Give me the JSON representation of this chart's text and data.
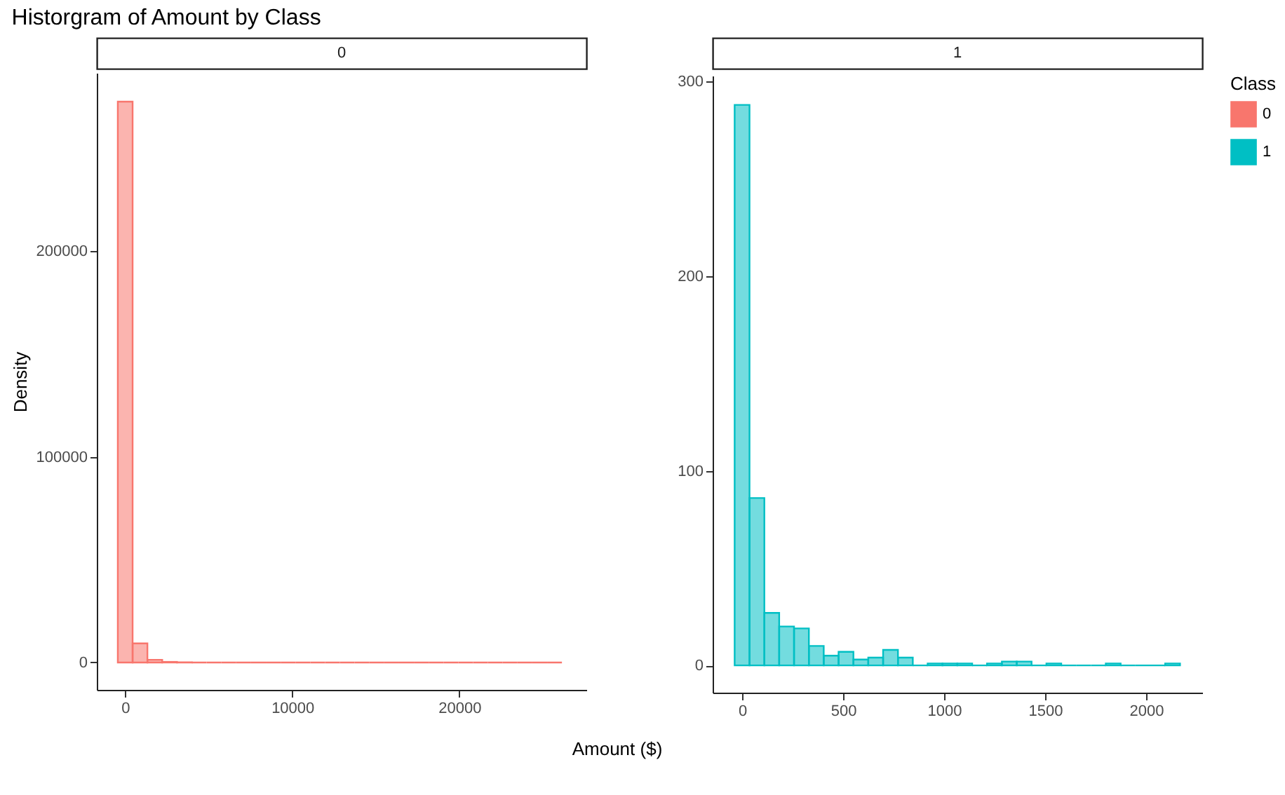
{
  "chart_data": [
    {
      "type": "histogram",
      "title": "Historgram of Amount by Class",
      "subtitle": "0",
      "ylabel": "Density",
      "xlabel": "Amount ($)",
      "bins": [
        -443,
        443,
        1329,
        2215,
        3101,
        3987,
        4873,
        5759,
        6645,
        7531,
        8417,
        9303,
        10189,
        11075,
        11961,
        12847,
        13733,
        14619,
        15505,
        16391,
        17277,
        18163,
        19049,
        19935,
        20821,
        21707,
        22593,
        23479,
        24365,
        25251,
        26137
      ],
      "series": [
        {
          "name": "0",
          "color": "#f8766d",
          "values": [
            272700,
            9300,
            1300,
            300,
            100,
            0,
            0,
            0,
            0,
            0,
            0,
            0,
            0,
            0,
            0,
            0,
            0,
            0,
            0,
            0,
            0,
            0,
            0,
            0,
            0,
            0,
            0,
            0,
            0,
            0
          ]
        }
      ],
      "xlim": [
        -1700,
        27600
      ],
      "xticks": [
        0,
        10000,
        20000
      ],
      "ylim": [
        -13300,
        286700
      ],
      "yticks": [
        0,
        100000,
        200000
      ]
    },
    {
      "type": "histogram",
      "subtitle": "1",
      "legend_title": "Class",
      "legend": "right",
      "bins": [
        -37,
        36.5,
        110,
        183.5,
        257,
        330.5,
        404,
        477.5,
        551,
        624.5,
        698,
        771.5,
        845,
        918.5,
        992,
        1065.5,
        1139,
        1212.5,
        1286,
        1359.5,
        1433,
        1506.5,
        1580,
        1653.5,
        1727,
        1800.5,
        1874,
        1947.5,
        2021,
        2094.5,
        2168
      ],
      "series": [
        {
          "name": "1",
          "color": "#00bfc4",
          "values": [
            288,
            86,
            27,
            20,
            19,
            10,
            5,
            7,
            3,
            4,
            8,
            4,
            0,
            1,
            1,
            1,
            0,
            1,
            2,
            2,
            0,
            1,
            0,
            0,
            0,
            1,
            0,
            0,
            0,
            1
          ]
        }
      ],
      "xlim": [
        -146,
        2278
      ],
      "xticks": [
        0,
        500,
        1000,
        1500,
        2000
      ],
      "ylim": [
        -14,
        303
      ],
      "yticks": [
        0,
        100,
        200,
        300
      ]
    }
  ]
}
